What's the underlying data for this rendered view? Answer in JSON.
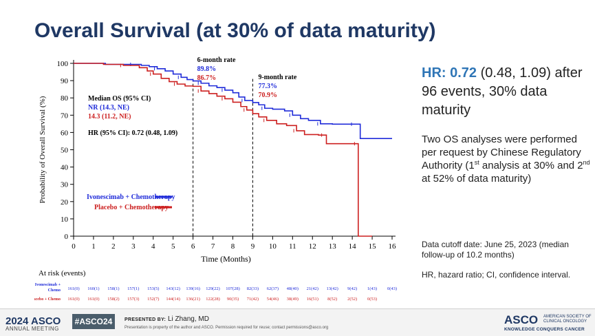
{
  "title": "Overall Survival (at 30% of data maturity)",
  "hr_summary": {
    "label": "HR:",
    "value": "0.72",
    "ci": "(0.48, 1.09)",
    "rest": "after 96 events, 30% data maturity"
  },
  "description": {
    "text1": "Two OS analyses were performed per request by Chinese Regulatory Authority (1",
    "sup1": "st",
    "text2": " analysis at 30% and 2",
    "sup2": "nd",
    "text3": " at 52% of data maturity)"
  },
  "notes": {
    "cutoff": "Data cutoff date: June 25, 2023 (median follow-up of 10.2 months)",
    "abbrev": "HR, hazard ratio; CI, confidence interval."
  },
  "footer": {
    "meeting_year": "2024 ASCO",
    "meeting_name": "ANNUAL MEETING",
    "hashtag": "#ASCO24",
    "presented_by_label": "PRESENTED BY:",
    "presenter": "Li Zhang, MD",
    "disclaimer": "Presentation is property of the author and ASCO. Permission required for reuse; contact permissions@asco.org",
    "asco_logo": "ASCO",
    "asco_subtitle": "AMERICAN SOCIETY OF CLINICAL ONCOLOGY",
    "tagline": "KNOWLEDGE CONQUERS CANCER"
  },
  "chart_data": {
    "type": "line",
    "subtype": "kaplan-meier",
    "xlabel": "Time (Months)",
    "ylabel": "Probability of Overall Survival (%)",
    "xlim": [
      0,
      16
    ],
    "ylim": [
      0,
      100
    ],
    "xticks": [
      0,
      1,
      2,
      3,
      4,
      5,
      6,
      7,
      8,
      9,
      10,
      11,
      12,
      13,
      14,
      15,
      16
    ],
    "yticks": [
      0,
      10,
      20,
      30,
      40,
      50,
      60,
      70,
      80,
      90,
      100
    ],
    "grid": false,
    "legend_position": "bottom-left",
    "colors": {
      "ivonescimab": "#1f2bd9",
      "placebo": "#cc1f1f"
    },
    "series": [
      {
        "name": "Ivonescimab + Chemotherapy",
        "color": "#1f2bd9",
        "points": [
          [
            0,
            100
          ],
          [
            1.2,
            100
          ],
          [
            1.6,
            99.4
          ],
          [
            3,
            99.4
          ],
          [
            3.4,
            98.8
          ],
          [
            3.8,
            98.1
          ],
          [
            4.2,
            96.9
          ],
          [
            4.6,
            95.6
          ],
          [
            5,
            93.8
          ],
          [
            5.4,
            91.9
          ],
          [
            5.7,
            90.6
          ],
          [
            6,
            89.8
          ],
          [
            6.4,
            88.5
          ],
          [
            6.8,
            87
          ],
          [
            7.2,
            86
          ],
          [
            7.6,
            84.5
          ],
          [
            8,
            83
          ],
          [
            8.3,
            80.5
          ],
          [
            8.6,
            78.5
          ],
          [
            9,
            77.3
          ],
          [
            9.3,
            76
          ],
          [
            9.6,
            74
          ],
          [
            10,
            73.5
          ],
          [
            10.6,
            72.5
          ],
          [
            11,
            70
          ],
          [
            11.4,
            68
          ],
          [
            11.8,
            67
          ],
          [
            12.4,
            65
          ],
          [
            13,
            64.8
          ],
          [
            13.6,
            64.8
          ],
          [
            14.1,
            64.8
          ],
          [
            14.4,
            56.5
          ],
          [
            15,
            56.5
          ],
          [
            16,
            56.5
          ]
        ]
      },
      {
        "name": "Placebo + Chemotherapy",
        "color": "#cc1f1f",
        "points": [
          [
            0,
            100
          ],
          [
            1,
            100
          ],
          [
            1.5,
            99.4
          ],
          [
            2.5,
            98.8
          ],
          [
            3.3,
            97.5
          ],
          [
            3.7,
            95.6
          ],
          [
            4,
            93.8
          ],
          [
            4.4,
            91.3
          ],
          [
            4.8,
            89.4
          ],
          [
            5.2,
            88
          ],
          [
            5.6,
            86.9
          ],
          [
            6,
            86.7
          ],
          [
            6.4,
            84
          ],
          [
            6.8,
            82.5
          ],
          [
            7.2,
            81
          ],
          [
            7.6,
            79.5
          ],
          [
            8,
            77.5
          ],
          [
            8.4,
            75
          ],
          [
            8.7,
            73
          ],
          [
            9,
            70.9
          ],
          [
            9.3,
            69
          ],
          [
            9.7,
            67
          ],
          [
            10.2,
            65
          ],
          [
            10.7,
            64
          ],
          [
            11.2,
            61
          ],
          [
            11.6,
            58.8
          ],
          [
            12.3,
            58.5
          ],
          [
            12.6,
            58.5
          ],
          [
            12.7,
            53.5
          ],
          [
            13.5,
            53.5
          ],
          [
            14.25,
            53.5
          ],
          [
            14.3,
            0
          ],
          [
            15,
            0
          ]
        ]
      }
    ],
    "reference_lines": [
      {
        "x": 6,
        "label": "6-month rate",
        "ivonescimab": "89.8%",
        "placebo": "86.7%"
      },
      {
        "x": 9,
        "label": "9-month rate",
        "ivonescimab": "77.3%",
        "placebo": "70.9%"
      }
    ],
    "annotations": {
      "median_header": "Median OS (95% CI)",
      "median_ivonescimab": "NR (14.3, NE)",
      "median_placebo": "14.3 (11.2, NE)",
      "hr_text": "HR (95% CI): 0.72 (0.48, 1.09)"
    },
    "legend": [
      "Ivonescimab + Chemotherapy",
      "Placebo + Chemotherapy"
    ],
    "at_risk": {
      "title": "At risk (events)",
      "rows": [
        {
          "label": "Ivonescimab + Chemo",
          "values": [
            "161(0)",
            "160(1)",
            "158(1)",
            "157(1)",
            "153(5)",
            "143(12)",
            "139(16)",
            "129(22)",
            "107(28)",
            "82(33)",
            "62(37)",
            "48(40)",
            "21(42)",
            "13(42)",
            "9(42)",
            "1(43)",
            "0(43)"
          ]
        },
        {
          "label": "Placebo + Chemo",
          "values": [
            "161(0)",
            "161(0)",
            "158(2)",
            "157(3)",
            "152(7)",
            "144(14)",
            "136(21)",
            "122(28)",
            "90(35)",
            "71(42)",
            "54(46)",
            "38(49)",
            "16(51)",
            "8(52)",
            "2(52)",
            "0(53)",
            ""
          ]
        }
      ]
    }
  }
}
